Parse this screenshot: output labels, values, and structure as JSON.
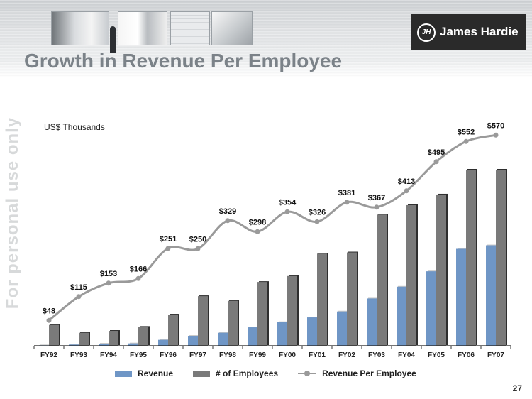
{
  "title": "Growth in Revenue Per Employee",
  "logo": {
    "mark": "JH",
    "text": "James Hardie"
  },
  "watermark": "For personal use only",
  "page_number": "27",
  "colors": {
    "revenue": "#6f96c6",
    "employees": "#7a7a7a",
    "rpe": "#9a9a9a",
    "title": "#7b8288",
    "logo_bg": "#2a2a2a"
  },
  "chart_data": {
    "type": "bar+line",
    "units_label": "US$ Thousands",
    "categories": [
      "FY92",
      "FY93",
      "FY94",
      "FY95",
      "FY96",
      "FY97",
      "FY98",
      "FY99",
      "FY00",
      "FY01",
      "FY02",
      "FY03",
      "FY04",
      "FY05",
      "FY06",
      "FY07"
    ],
    "series": [
      {
        "name": "Revenue",
        "type": "bar",
        "values": [
          2,
          5,
          9,
          10,
          25,
          42,
          55,
          78,
          100,
          120,
          145,
          200,
          250,
          315,
          410,
          425
        ]
      },
      {
        "name": "# of Employees",
        "type": "bar",
        "values": [
          88,
          55,
          63,
          80,
          132,
          210,
          190,
          270,
          295,
          390,
          395,
          555,
          595,
          640,
          745,
          745
        ]
      },
      {
        "name": "Revenue Per Employee",
        "type": "line",
        "values": [
          48,
          115,
          153,
          166,
          251,
          250,
          329,
          298,
          354,
          326,
          381,
          367,
          413,
          495,
          552,
          570
        ],
        "labels": [
          "$48",
          "$115",
          "$153",
          "$166",
          "$251",
          "$250",
          "$329",
          "$298",
          "$354",
          "$326",
          "$381",
          "$367",
          "$413",
          "$495",
          "$552",
          "$570"
        ]
      }
    ],
    "legend": [
      "Revenue",
      "# of Employees",
      "Revenue Per Employee"
    ],
    "legend_position": "bottom"
  }
}
